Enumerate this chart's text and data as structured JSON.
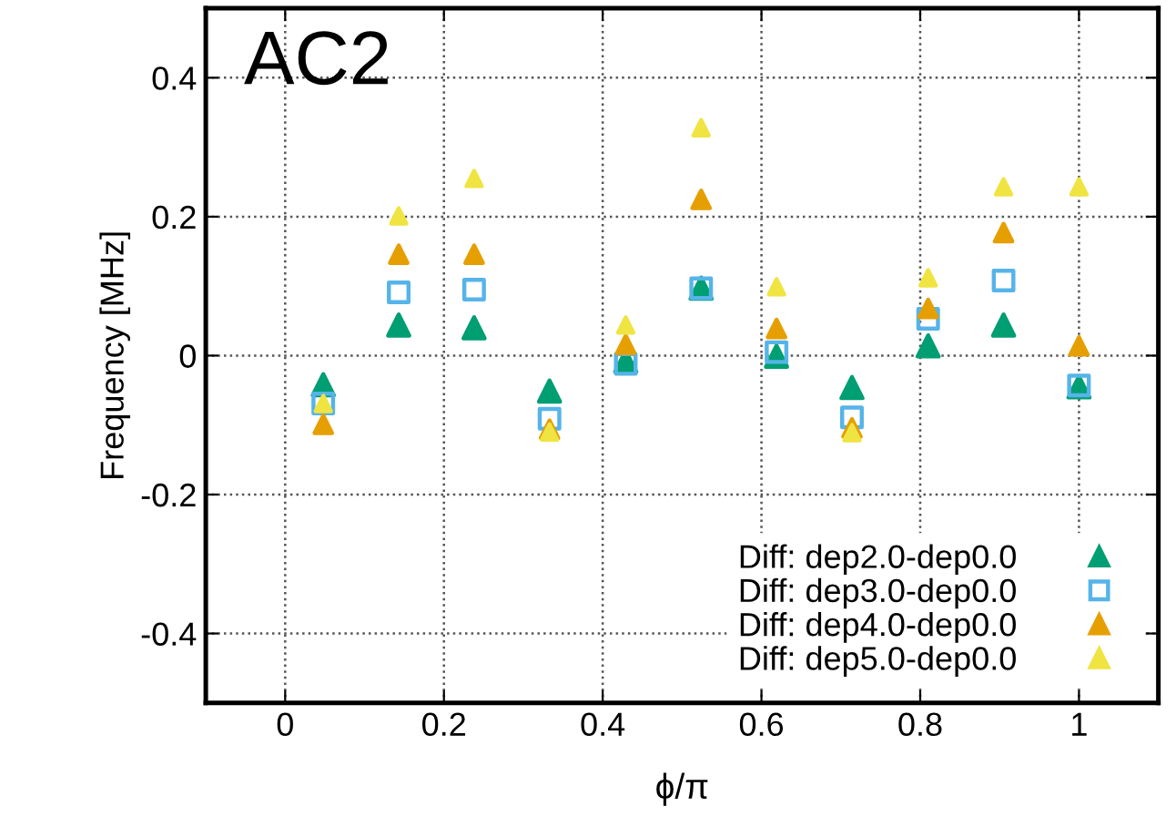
{
  "chart_data": {
    "type": "scatter",
    "xlabel": "ϕ/π",
    "ylabel": "Frequency [MHz]",
    "annotations": [
      "AC2"
    ],
    "x": [
      0.048,
      0.143,
      0.238,
      0.333,
      0.429,
      0.524,
      0.619,
      0.714,
      0.81,
      0.905,
      1.0
    ],
    "xlim": [
      -0.1,
      1.1
    ],
    "xticks": [
      0,
      0.2,
      0.4,
      0.6,
      0.8,
      1
    ],
    "ylim": [
      -0.5,
      0.5
    ],
    "yticks": [
      -0.4,
      -0.2,
      0,
      0.2,
      0.4
    ],
    "grid": true,
    "legend": "bottom right",
    "series": [
      {
        "name": "Diff: dep2.0-dep0.0",
        "color": "#009e73",
        "marker": "triangle",
        "values": [
          -0.042,
          0.044,
          0.04,
          -0.051,
          -0.008,
          0.097,
          -0.001,
          -0.046,
          0.014,
          0.044,
          -0.045
        ]
      },
      {
        "name": "Diff: dep3.0-dep0.0",
        "color": "#56b4e9",
        "marker": "square",
        "values": [
          -0.069,
          0.091,
          0.095,
          -0.091,
          -0.012,
          0.097,
          0.005,
          -0.089,
          0.053,
          0.108,
          -0.043
        ]
      },
      {
        "name": "Diff: dep4.0-dep0.0",
        "color": "#e69f00",
        "marker": "triangle",
        "values": [
          -0.099,
          0.146,
          0.146,
          -0.106,
          0.016,
          0.225,
          0.039,
          -0.104,
          0.068,
          0.177,
          0.014
        ]
      },
      {
        "name": "Diff: dep5.0-dep0.0",
        "color": "#f0e442",
        "marker": "triangle",
        "values": [
          -0.069,
          0.201,
          0.255,
          -0.11,
          0.044,
          0.328,
          0.099,
          -0.111,
          0.112,
          0.243,
          0.243
        ]
      }
    ]
  }
}
